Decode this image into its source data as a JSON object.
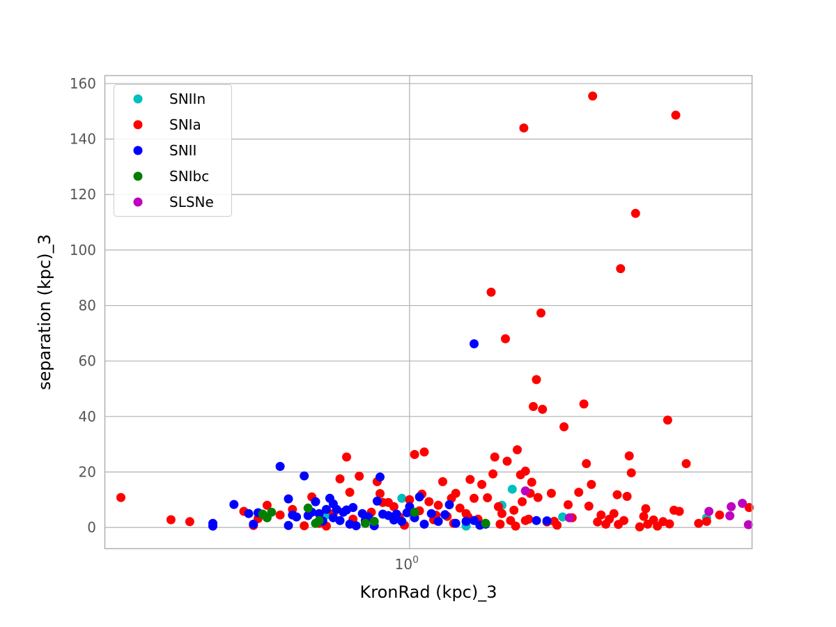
{
  "chart_data": {
    "type": "scatter",
    "xlabel": "KronRad (kpc)_3",
    "ylabel": "separation (kpc)_3",
    "x_scale": "log",
    "x_tick_labels": [
      {
        "value": 1,
        "base": "10",
        "exp": "0"
      }
    ],
    "y_ticks": [
      0,
      20,
      40,
      60,
      80,
      100,
      120,
      140,
      160
    ],
    "xlim": [
      0.3,
      3.87
    ],
    "ylim": [
      -7.5,
      163
    ],
    "grid": true,
    "legend_position": "top-left",
    "series": [
      {
        "name": "SNIIn",
        "color": "#00bfbf",
        "points": [
          [
            0.97,
            10.5
          ],
          [
            1.44,
            8
          ],
          [
            1.5,
            13.8
          ],
          [
            1.83,
            3.8
          ],
          [
            3.23,
            3.5
          ],
          [
            1.25,
            0.5
          ],
          [
            0.72,
            4.5
          ]
        ]
      },
      {
        "name": "SNIa",
        "color": "#ff0000",
        "points": [
          [
            0.32,
            10.8
          ],
          [
            0.39,
            2.8
          ],
          [
            0.42,
            2.1
          ],
          [
            0.52,
            5.8
          ],
          [
            0.54,
            0.7
          ],
          [
            0.55,
            3.2
          ],
          [
            0.57,
            8
          ],
          [
            0.6,
            4.5
          ],
          [
            0.63,
            6.5
          ],
          [
            0.66,
            0.6
          ],
          [
            0.68,
            11
          ],
          [
            0.69,
            9.3
          ],
          [
            0.7,
            1.5
          ],
          [
            0.72,
            0.5
          ],
          [
            0.74,
            5
          ],
          [
            0.76,
            17.5
          ],
          [
            0.78,
            25.4
          ],
          [
            0.79,
            12.7
          ],
          [
            0.8,
            3
          ],
          [
            0.82,
            18.5
          ],
          [
            0.84,
            2.5
          ],
          [
            0.86,
            5.5
          ],
          [
            0.88,
            16.5
          ],
          [
            0.89,
            12.2
          ],
          [
            0.9,
            9
          ],
          [
            0.92,
            9
          ],
          [
            0.94,
            7.5
          ],
          [
            0.96,
            3.8
          ],
          [
            0.98,
            0.8
          ],
          [
            1.0,
            10
          ],
          [
            1.02,
            26.3
          ],
          [
            1.04,
            6
          ],
          [
            1.05,
            12
          ],
          [
            1.06,
            27.2
          ],
          [
            1.08,
            9.3
          ],
          [
            1.1,
            2.8
          ],
          [
            1.12,
            8
          ],
          [
            1.14,
            16.5
          ],
          [
            1.16,
            4
          ],
          [
            1.18,
            10.5
          ],
          [
            1.2,
            12.3
          ],
          [
            1.22,
            7
          ],
          [
            1.25,
            5
          ],
          [
            1.27,
            17.3
          ],
          [
            1.29,
            10.5
          ],
          [
            1.31,
            3
          ],
          [
            1.33,
            15.5
          ],
          [
            1.35,
            1.5
          ],
          [
            1.36,
            10.7
          ],
          [
            1.38,
            84.8
          ],
          [
            1.39,
            19.3
          ],
          [
            1.4,
            25.4
          ],
          [
            1.42,
            7.5
          ],
          [
            1.44,
            5
          ],
          [
            1.46,
            68
          ],
          [
            1.47,
            23.9
          ],
          [
            1.49,
            2.5
          ],
          [
            1.51,
            6.2
          ],
          [
            1.53,
            28
          ],
          [
            1.55,
            19
          ],
          [
            1.56,
            9.3
          ],
          [
            1.57,
            144
          ],
          [
            1.58,
            20.3
          ],
          [
            1.6,
            3
          ],
          [
            1.61,
            12.3
          ],
          [
            1.62,
            16.3
          ],
          [
            1.63,
            43.6
          ],
          [
            1.65,
            53.3
          ],
          [
            1.66,
            10.8
          ],
          [
            1.68,
            77.3
          ],
          [
            1.69,
            42.6
          ],
          [
            1.72,
            2
          ],
          [
            1.75,
            12.3
          ],
          [
            1.79,
            0.8
          ],
          [
            1.84,
            36.3
          ],
          [
            1.87,
            8.2
          ],
          [
            1.9,
            3.5
          ],
          [
            1.95,
            12.7
          ],
          [
            1.99,
            44.5
          ],
          [
            2.01,
            23
          ],
          [
            2.03,
            7.7
          ],
          [
            2.05,
            15.5
          ],
          [
            2.06,
            155.5
          ],
          [
            2.1,
            2
          ],
          [
            2.13,
            4.5
          ],
          [
            2.17,
            1.2
          ],
          [
            2.2,
            3
          ],
          [
            2.24,
            5
          ],
          [
            2.27,
            11.8
          ],
          [
            2.3,
            93.3
          ],
          [
            2.33,
            2.5
          ],
          [
            2.36,
            11.2
          ],
          [
            2.38,
            25.8
          ],
          [
            2.4,
            19.7
          ],
          [
            2.44,
            113.2
          ],
          [
            2.48,
            0.2
          ],
          [
            2.52,
            4
          ],
          [
            2.54,
            6.8
          ],
          [
            2.56,
            1.2
          ],
          [
            2.66,
            0.5
          ],
          [
            2.72,
            2.1
          ],
          [
            2.77,
            38.7
          ],
          [
            2.79,
            1.3
          ],
          [
            2.84,
            6.2
          ],
          [
            2.86,
            148.6
          ],
          [
            2.9,
            5.8
          ],
          [
            2.98,
            23
          ],
          [
            3.13,
            1.5
          ],
          [
            3.23,
            2.2
          ],
          [
            3.4,
            4.5
          ],
          [
            3.82,
            7.2
          ],
          [
            1.19,
            1.5
          ],
          [
            1.26,
            3.8
          ],
          [
            1.43,
            1.2
          ],
          [
            1.52,
            0.5
          ],
          [
            1.58,
            2.5
          ],
          [
            1.77,
            2.2
          ],
          [
            2.28,
            1.1
          ],
          [
            2.62,
            2.7
          ],
          [
            1.11,
            4.4
          ]
        ]
      },
      {
        "name": "SNII",
        "color": "#0000ff",
        "points": [
          [
            0.46,
            1.5
          ],
          [
            0.46,
            0.5
          ],
          [
            0.5,
            8.3
          ],
          [
            0.53,
            5
          ],
          [
            0.54,
            1.2
          ],
          [
            0.55,
            5.3
          ],
          [
            0.6,
            22
          ],
          [
            0.62,
            0.7
          ],
          [
            0.62,
            10.3
          ],
          [
            0.63,
            4.5
          ],
          [
            0.64,
            3.8
          ],
          [
            0.66,
            18.6
          ],
          [
            0.67,
            4.3
          ],
          [
            0.68,
            5.5
          ],
          [
            0.69,
            9.3
          ],
          [
            0.7,
            5
          ],
          [
            0.71,
            2.3
          ],
          [
            0.72,
            6.5
          ],
          [
            0.73,
            10.5
          ],
          [
            0.74,
            8.5
          ],
          [
            0.75,
            6.5
          ],
          [
            0.76,
            2.5
          ],
          [
            0.77,
            5.5
          ],
          [
            0.78,
            6.3
          ],
          [
            0.79,
            1.2
          ],
          [
            0.8,
            7.2
          ],
          [
            0.81,
            0.6
          ],
          [
            0.83,
            5
          ],
          [
            0.84,
            2.5
          ],
          [
            0.85,
            3.8
          ],
          [
            0.87,
            0.6
          ],
          [
            0.88,
            9.5
          ],
          [
            0.89,
            18.2
          ],
          [
            0.9,
            4.8
          ],
          [
            0.92,
            4.3
          ],
          [
            0.94,
            2.7
          ],
          [
            0.95,
            4.8
          ],
          [
            0.97,
            2.2
          ],
          [
            0.99,
            5.3
          ],
          [
            1.0,
            7.5
          ],
          [
            1.02,
            3.5
          ],
          [
            1.04,
            11
          ],
          [
            1.06,
            1.2
          ],
          [
            1.09,
            5
          ],
          [
            1.12,
            2.2
          ],
          [
            1.15,
            4.6
          ],
          [
            1.17,
            8.2
          ],
          [
            1.2,
            1.5
          ],
          [
            1.25,
            2.2
          ],
          [
            1.29,
            66.2
          ],
          [
            1.29,
            2.5
          ],
          [
            1.32,
            0.8
          ],
          [
            1.35,
            1.2
          ],
          [
            1.65,
            2.5
          ],
          [
            1.72,
            2.4
          ],
          [
            0.74,
            3.5
          ]
        ]
      },
      {
        "name": "SNIbc",
        "color": "#008000",
        "points": [
          [
            0.56,
            4.8
          ],
          [
            0.57,
            3.5
          ],
          [
            0.58,
            5.5
          ],
          [
            0.67,
            7
          ],
          [
            0.69,
            1.5
          ],
          [
            0.7,
            2.5
          ],
          [
            0.84,
            1.5
          ],
          [
            0.87,
            2.2
          ],
          [
            1.02,
            5.5
          ],
          [
            1.35,
            1.5
          ]
        ]
      },
      {
        "name": "SLSNe",
        "color": "#bf00bf",
        "points": [
          [
            1.58,
            13.2
          ],
          [
            1.88,
            3.5
          ],
          [
            3.26,
            5.8
          ],
          [
            3.54,
            4.2
          ],
          [
            3.56,
            7.5
          ],
          [
            3.72,
            8.7
          ],
          [
            3.81,
            1
          ]
        ]
      }
    ]
  }
}
